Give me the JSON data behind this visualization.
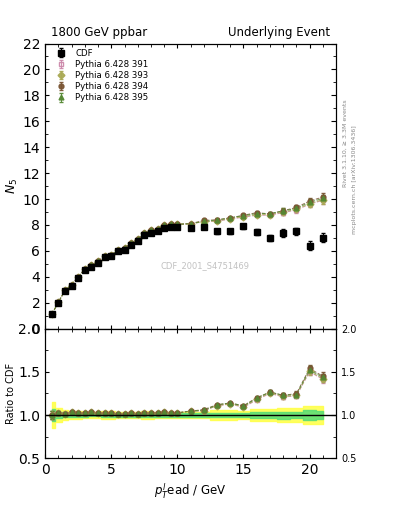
{
  "title_left": "1800 GeV ppbar",
  "title_right": "Underlying Event",
  "ylabel_main": "$N_5$",
  "ylabel_ratio": "Ratio to CDF",
  "xlabel": "$p_T^l$ead / GeV",
  "right_label": "Rivet 3.1.10, ≥ 3.3M events",
  "watermark": "CDF_2001_S4751469",
  "side_label": "mcplots.cern.ch [arXiv:1306.3436]",
  "ylim_main": [
    0,
    22
  ],
  "ylim_ratio": [
    0.5,
    2.0
  ],
  "xlim": [
    0,
    22
  ],
  "yticks_main": [
    0,
    2,
    4,
    6,
    8,
    10,
    12,
    14,
    16,
    18,
    20,
    22
  ],
  "yticks_ratio": [
    0.5,
    1.0,
    1.5,
    2.0
  ],
  "cdf_x": [
    0.5,
    1.0,
    1.5,
    2.0,
    2.5,
    3.0,
    3.5,
    4.0,
    4.5,
    5.0,
    5.5,
    6.0,
    6.5,
    7.0,
    7.5,
    8.0,
    8.5,
    9.0,
    9.5,
    10.0,
    11.0,
    12.0,
    13.0,
    14.0,
    15.0,
    16.0,
    17.0,
    18.0,
    19.0,
    20.0,
    21.0
  ],
  "cdf_y": [
    1.1,
    2.0,
    2.9,
    3.3,
    3.9,
    4.5,
    4.75,
    5.1,
    5.5,
    5.6,
    6.0,
    6.1,
    6.45,
    6.8,
    7.2,
    7.4,
    7.5,
    7.75,
    7.85,
    7.85,
    7.75,
    7.85,
    7.5,
    7.5,
    7.9,
    7.45,
    7.0,
    7.4,
    7.5,
    6.4,
    7.0
  ],
  "cdf_yerr": [
    0.08,
    0.08,
    0.08,
    0.08,
    0.08,
    0.08,
    0.08,
    0.08,
    0.12,
    0.12,
    0.12,
    0.12,
    0.12,
    0.12,
    0.15,
    0.15,
    0.15,
    0.15,
    0.15,
    0.15,
    0.15,
    0.15,
    0.2,
    0.2,
    0.2,
    0.25,
    0.25,
    0.3,
    0.3,
    0.35,
    0.35
  ],
  "p391_x": [
    0.5,
    1.0,
    1.5,
    2.0,
    2.5,
    3.0,
    3.5,
    4.0,
    4.5,
    5.0,
    5.5,
    6.0,
    6.5,
    7.0,
    7.5,
    8.0,
    8.5,
    9.0,
    9.5,
    10.0,
    11.0,
    12.0,
    13.0,
    14.0,
    15.0,
    16.0,
    17.0,
    18.0,
    19.0,
    20.0,
    21.0
  ],
  "p391_y": [
    1.1,
    2.05,
    2.95,
    3.4,
    4.0,
    4.6,
    4.9,
    5.2,
    5.6,
    5.7,
    6.05,
    6.2,
    6.6,
    6.9,
    7.35,
    7.6,
    7.7,
    8.0,
    8.05,
    8.05,
    8.1,
    8.25,
    8.3,
    8.45,
    8.6,
    8.75,
    8.75,
    8.95,
    9.15,
    9.6,
    9.9
  ],
  "p391_yerr": [
    0.05,
    0.05,
    0.05,
    0.05,
    0.05,
    0.05,
    0.05,
    0.05,
    0.05,
    0.05,
    0.05,
    0.05,
    0.05,
    0.05,
    0.08,
    0.08,
    0.08,
    0.08,
    0.08,
    0.08,
    0.08,
    0.1,
    0.1,
    0.1,
    0.1,
    0.12,
    0.15,
    0.2,
    0.2,
    0.25,
    0.3
  ],
  "p391_color": "#cc88aa",
  "p391_marker": "s",
  "p393_x": [
    0.5,
    1.0,
    1.5,
    2.0,
    2.5,
    3.0,
    3.5,
    4.0,
    4.5,
    5.0,
    5.5,
    6.0,
    6.5,
    7.0,
    7.5,
    8.0,
    8.5,
    9.0,
    9.5,
    10.0,
    11.0,
    12.0,
    13.0,
    14.0,
    15.0,
    16.0,
    17.0,
    18.0,
    19.0,
    20.0,
    21.0
  ],
  "p393_y": [
    1.1,
    2.05,
    2.95,
    3.4,
    4.0,
    4.6,
    4.9,
    5.2,
    5.6,
    5.7,
    6.05,
    6.2,
    6.6,
    6.9,
    7.35,
    7.6,
    7.7,
    8.0,
    8.05,
    8.05,
    8.1,
    8.25,
    8.32,
    8.48,
    8.65,
    8.8,
    8.8,
    9.0,
    9.2,
    9.65,
    9.95
  ],
  "p393_yerr": [
    0.05,
    0.05,
    0.05,
    0.05,
    0.05,
    0.05,
    0.05,
    0.05,
    0.05,
    0.05,
    0.05,
    0.05,
    0.05,
    0.05,
    0.08,
    0.08,
    0.08,
    0.08,
    0.08,
    0.08,
    0.08,
    0.1,
    0.1,
    0.1,
    0.1,
    0.12,
    0.15,
    0.2,
    0.2,
    0.25,
    0.3
  ],
  "p393_color": "#aaaa55",
  "p393_marker": "D",
  "p394_x": [
    0.5,
    1.0,
    1.5,
    2.0,
    2.5,
    3.0,
    3.5,
    4.0,
    4.5,
    5.0,
    5.5,
    6.0,
    6.5,
    7.0,
    7.5,
    8.0,
    8.5,
    9.0,
    9.5,
    10.0,
    11.0,
    12.0,
    13.0,
    14.0,
    15.0,
    16.0,
    17.0,
    18.0,
    19.0,
    20.0,
    21.0
  ],
  "p394_y": [
    1.1,
    2.05,
    2.95,
    3.4,
    4.0,
    4.6,
    4.9,
    5.2,
    5.6,
    5.7,
    6.05,
    6.2,
    6.6,
    6.9,
    7.35,
    7.6,
    7.7,
    8.0,
    8.05,
    8.05,
    8.1,
    8.35,
    8.4,
    8.55,
    8.75,
    8.95,
    8.85,
    9.1,
    9.35,
    9.85,
    10.15
  ],
  "p394_yerr": [
    0.05,
    0.05,
    0.05,
    0.05,
    0.05,
    0.05,
    0.05,
    0.05,
    0.05,
    0.05,
    0.05,
    0.05,
    0.05,
    0.05,
    0.08,
    0.08,
    0.08,
    0.08,
    0.08,
    0.08,
    0.08,
    0.1,
    0.1,
    0.1,
    0.1,
    0.12,
    0.15,
    0.2,
    0.2,
    0.25,
    0.3
  ],
  "p394_color": "#7a5533",
  "p394_marker": "o",
  "p395_x": [
    0.5,
    1.0,
    1.5,
    2.0,
    2.5,
    3.0,
    3.5,
    4.0,
    4.5,
    5.0,
    5.5,
    6.0,
    6.5,
    7.0,
    7.5,
    8.0,
    8.5,
    9.0,
    9.5,
    10.0,
    11.0,
    12.0,
    13.0,
    14.0,
    15.0,
    16.0,
    17.0,
    18.0,
    19.0,
    20.0,
    21.0
  ],
  "p395_y": [
    1.1,
    2.05,
    2.95,
    3.4,
    4.0,
    4.6,
    4.9,
    5.2,
    5.6,
    5.7,
    6.05,
    6.2,
    6.6,
    6.9,
    7.35,
    7.6,
    7.7,
    8.0,
    8.05,
    8.05,
    8.1,
    8.28,
    8.38,
    8.55,
    8.72,
    8.88,
    8.88,
    9.08,
    9.28,
    9.75,
    10.05
  ],
  "p395_yerr": [
    0.05,
    0.05,
    0.05,
    0.05,
    0.05,
    0.05,
    0.05,
    0.05,
    0.05,
    0.05,
    0.05,
    0.05,
    0.05,
    0.05,
    0.08,
    0.08,
    0.08,
    0.08,
    0.08,
    0.08,
    0.08,
    0.1,
    0.1,
    0.1,
    0.1,
    0.12,
    0.15,
    0.2,
    0.2,
    0.25,
    0.3
  ],
  "p395_color": "#558833",
  "p395_marker": "^",
  "bg_color": "#ffffff"
}
